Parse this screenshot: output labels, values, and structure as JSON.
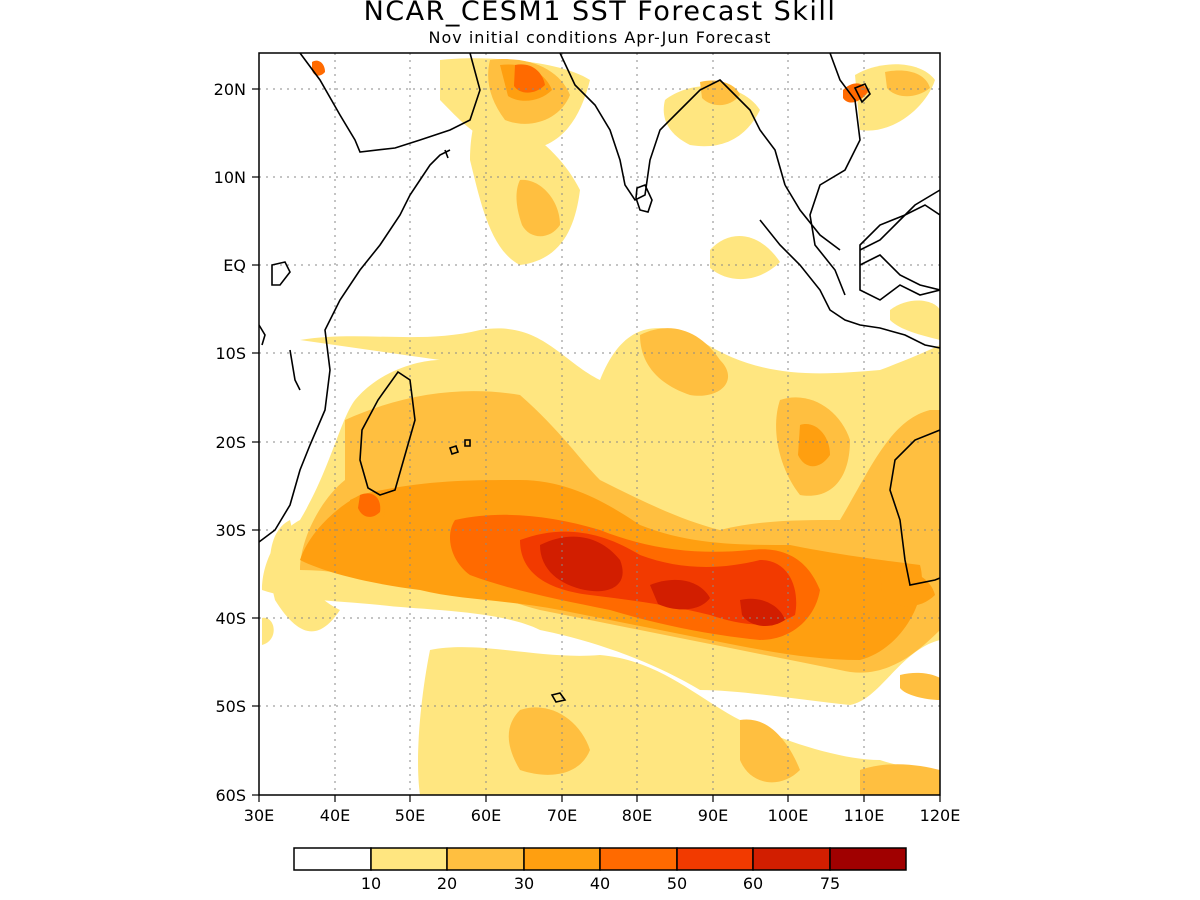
{
  "header": {
    "title": "NCAR_CESM1  SST Forecast Skill",
    "subtitle": "Nov initial conditions  Apr-Jun Forecast"
  },
  "map": {
    "projection": "lat-lon",
    "lon_range": [
      30,
      120
    ],
    "lat_range": [
      -60,
      24
    ],
    "x_tick_labels": [
      "30E",
      "40E",
      "50E",
      "60E",
      "70E",
      "80E",
      "90E",
      "100E",
      "110E",
      "120E"
    ],
    "y_tick_labels": [
      "20N",
      "10N",
      "EQ",
      "10S",
      "20S",
      "30S",
      "40S",
      "50S",
      "60S"
    ],
    "grid": "dotted"
  },
  "colorbar": {
    "labels": [
      "10",
      "20",
      "30",
      "40",
      "50",
      "60",
      "75"
    ],
    "colors": [
      "#ffffff",
      "#ffe680",
      "#ffbf40",
      "#ff9f10",
      "#ff6a00",
      "#f23a00",
      "#d21e00",
      "#a00000"
    ]
  }
}
